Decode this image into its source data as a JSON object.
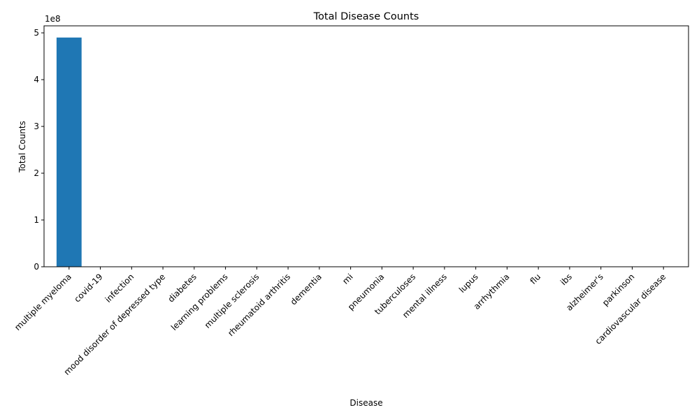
{
  "chart_data": {
    "type": "bar",
    "title": "Total Disease Counts",
    "xlabel": "Disease",
    "ylabel": "Total Counts",
    "y_offset_text": "1e8",
    "y_scale": 100000000,
    "ylim": [
      0,
      515000000
    ],
    "yticks": [
      0,
      100000000,
      200000000,
      300000000,
      400000000,
      500000000
    ],
    "ytick_labels": [
      "0",
      "1",
      "2",
      "3",
      "4",
      "5"
    ],
    "grid": false,
    "bar_color": "#1f77b4",
    "categories": [
      "multiple myeloma",
      "covid-19",
      "infection",
      "mood disorder of depressed type",
      "diabetes",
      "learning problems",
      "multiple sclerosis",
      "rheumatoid arthritis",
      "dementia",
      "mi",
      "pneumonia",
      "tuberculoses",
      "mental illness",
      "lupus",
      "arrhythmia",
      "flu",
      "ibs",
      "alzheimer's",
      "parkinson",
      "cardiovascular disease"
    ],
    "values": [
      490000000,
      0,
      0,
      0,
      0,
      0,
      0,
      0,
      0,
      0,
      0,
      0,
      0,
      0,
      0,
      0,
      0,
      0,
      0,
      0
    ]
  }
}
